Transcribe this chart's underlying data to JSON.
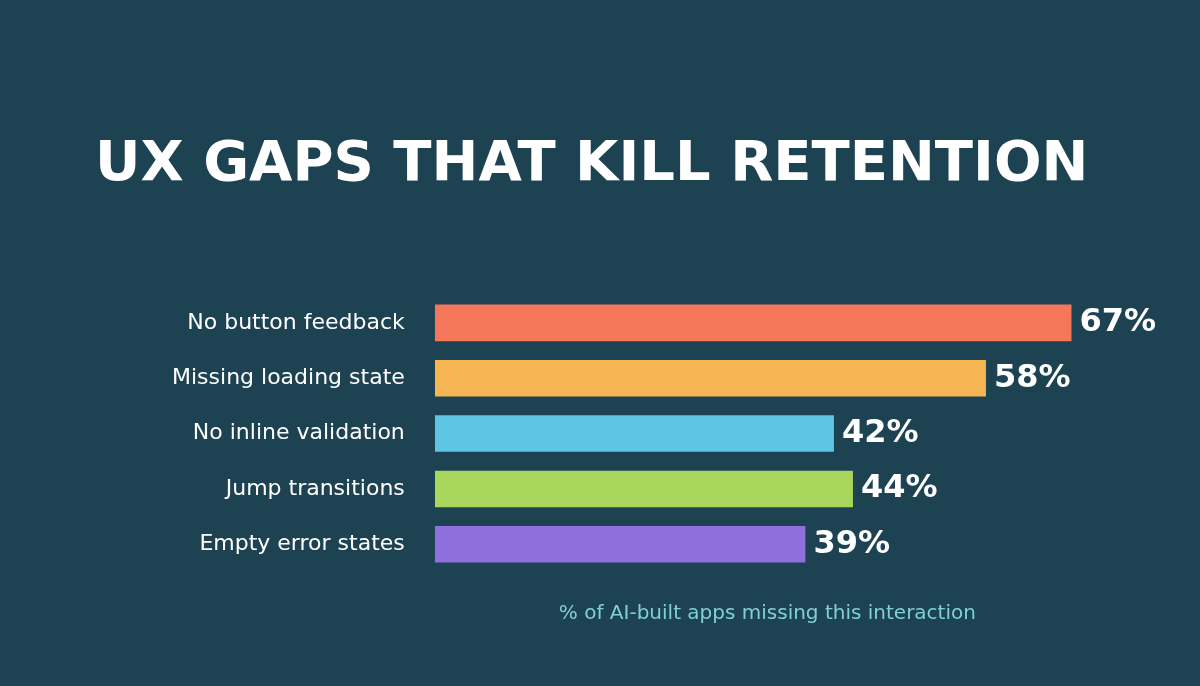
{
  "chart_data": {
    "type": "bar",
    "orientation": "horizontal",
    "title": "UX GAPS THAT KILL RETENTION",
    "categories": [
      "No button feedback",
      "Missing loading state",
      "No inline validation",
      "Jump transitions",
      "Empty error states"
    ],
    "values": [
      67,
      58,
      42,
      44,
      39
    ],
    "colors": [
      "#f4775c",
      "#f5b553",
      "#5ec6e4",
      "#a8d65c",
      "#8f6fdc"
    ],
    "value_labels": [
      "67%",
      "58%",
      "42%",
      "44%",
      "39%"
    ],
    "xlabel": "% of AI-built apps missing this interaction",
    "tick_labels": "y",
    "grid": false,
    "legend": false
  }
}
